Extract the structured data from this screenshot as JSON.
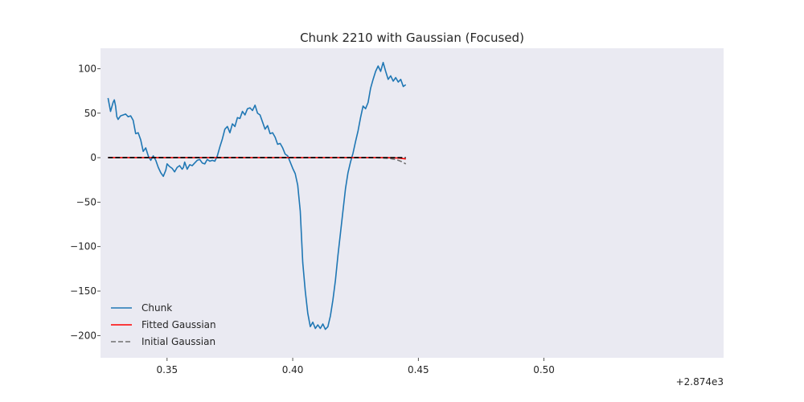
{
  "chart_data": {
    "type": "line",
    "title": "Chunk 2210 with Gaussian (Focused)",
    "xlabel": "",
    "ylabel": "",
    "x_offset_label": "+2.874e3",
    "xlim": [
      0.3235,
      0.5715
    ],
    "ylim": [
      -225,
      123
    ],
    "x_ticks": [
      0.35,
      0.4,
      0.45,
      0.5
    ],
    "x_tick_labels": [
      "0.35",
      "0.40",
      "0.45",
      "0.50"
    ],
    "y_ticks": [
      100,
      50,
      0,
      -50,
      -100,
      -150,
      -200
    ],
    "y_tick_labels": [
      "100",
      "50",
      "0",
      "−50",
      "−100",
      "−150",
      "−200"
    ],
    "grid": false,
    "legend_position": "lower-left",
    "background": "#eaeaf2",
    "series": [
      {
        "name": "Chunk",
        "color": "#1f77b4",
        "style": "solid",
        "points": [
          [
            0.3265,
            67
          ],
          [
            0.3275,
            52
          ],
          [
            0.3285,
            62
          ],
          [
            0.329,
            65
          ],
          [
            0.3295,
            58
          ],
          [
            0.33,
            46
          ],
          [
            0.3305,
            43
          ],
          [
            0.3315,
            47
          ],
          [
            0.3325,
            48
          ],
          [
            0.3335,
            49
          ],
          [
            0.3345,
            46
          ],
          [
            0.3355,
            47
          ],
          [
            0.3365,
            42
          ],
          [
            0.3375,
            27
          ],
          [
            0.3385,
            28
          ],
          [
            0.3395,
            20
          ],
          [
            0.3405,
            7
          ],
          [
            0.3415,
            11
          ],
          [
            0.3425,
            2
          ],
          [
            0.3435,
            -3
          ],
          [
            0.3445,
            2
          ],
          [
            0.3455,
            -3
          ],
          [
            0.3465,
            -11
          ],
          [
            0.3475,
            -17
          ],
          [
            0.3485,
            -21
          ],
          [
            0.3495,
            -14
          ],
          [
            0.35,
            -7
          ],
          [
            0.351,
            -10
          ],
          [
            0.352,
            -12
          ],
          [
            0.353,
            -16
          ],
          [
            0.354,
            -11
          ],
          [
            0.355,
            -9
          ],
          [
            0.356,
            -13
          ],
          [
            0.3565,
            -11
          ],
          [
            0.357,
            -5
          ],
          [
            0.358,
            -13
          ],
          [
            0.359,
            -8
          ],
          [
            0.36,
            -9
          ],
          [
            0.361,
            -6
          ],
          [
            0.362,
            -3
          ],
          [
            0.363,
            -2
          ],
          [
            0.364,
            -6
          ],
          [
            0.365,
            -7
          ],
          [
            0.366,
            -2
          ],
          [
            0.367,
            -4
          ],
          [
            0.368,
            -3
          ],
          [
            0.369,
            -4
          ],
          [
            0.37,
            2
          ],
          [
            0.371,
            12
          ],
          [
            0.372,
            21
          ],
          [
            0.373,
            32
          ],
          [
            0.374,
            35
          ],
          [
            0.375,
            28
          ],
          [
            0.376,
            38
          ],
          [
            0.377,
            35
          ],
          [
            0.378,
            45
          ],
          [
            0.379,
            44
          ],
          [
            0.38,
            52
          ],
          [
            0.381,
            48
          ],
          [
            0.382,
            55
          ],
          [
            0.383,
            56
          ],
          [
            0.384,
            53
          ],
          [
            0.385,
            59
          ],
          [
            0.386,
            50
          ],
          [
            0.387,
            48
          ],
          [
            0.388,
            40
          ],
          [
            0.389,
            32
          ],
          [
            0.39,
            36
          ],
          [
            0.391,
            27
          ],
          [
            0.392,
            28
          ],
          [
            0.393,
            23
          ],
          [
            0.394,
            15
          ],
          [
            0.395,
            16
          ],
          [
            0.396,
            11
          ],
          [
            0.397,
            4
          ],
          [
            0.398,
            2
          ],
          [
            0.399,
            -5
          ],
          [
            0.4,
            -12
          ],
          [
            0.401,
            -18
          ],
          [
            0.402,
            -31
          ],
          [
            0.403,
            -60
          ],
          [
            0.404,
            -118
          ],
          [
            0.405,
            -150
          ],
          [
            0.406,
            -175
          ],
          [
            0.407,
            -190
          ],
          [
            0.408,
            -185
          ],
          [
            0.409,
            -192
          ],
          [
            0.41,
            -188
          ],
          [
            0.411,
            -192
          ],
          [
            0.412,
            -187
          ],
          [
            0.413,
            -193
          ],
          [
            0.414,
            -190
          ],
          [
            0.415,
            -178
          ],
          [
            0.416,
            -160
          ],
          [
            0.417,
            -138
          ],
          [
            0.418,
            -110
          ],
          [
            0.419,
            -85
          ],
          [
            0.42,
            -60
          ],
          [
            0.421,
            -35
          ],
          [
            0.422,
            -17
          ],
          [
            0.423,
            -5
          ],
          [
            0.424,
            5
          ],
          [
            0.425,
            18
          ],
          [
            0.426,
            30
          ],
          [
            0.427,
            45
          ],
          [
            0.428,
            58
          ],
          [
            0.429,
            55
          ],
          [
            0.43,
            62
          ],
          [
            0.431,
            78
          ],
          [
            0.432,
            88
          ],
          [
            0.433,
            97
          ],
          [
            0.434,
            103
          ],
          [
            0.435,
            97
          ],
          [
            0.436,
            107
          ],
          [
            0.437,
            97
          ],
          [
            0.438,
            88
          ],
          [
            0.439,
            92
          ],
          [
            0.44,
            86
          ],
          [
            0.441,
            90
          ],
          [
            0.442,
            85
          ],
          [
            0.443,
            88
          ],
          [
            0.444,
            80
          ],
          [
            0.445,
            82
          ]
        ]
      },
      {
        "name": "Fitted Gaussian",
        "color": "#ff0000",
        "style": "solid",
        "gaussian": {
          "amplitude": -208,
          "center": 0.471,
          "sigma": 0.0083
        }
      },
      {
        "name": "Initial Gaussian",
        "color": "#707070",
        "style": "dashed",
        "gaussian": {
          "amplitude": -198,
          "center": 0.4695,
          "sigma": 0.0095
        }
      },
      {
        "name": "",
        "color": "#000000",
        "style": "dashed",
        "note": "",
        "baseline": true
      }
    ]
  }
}
